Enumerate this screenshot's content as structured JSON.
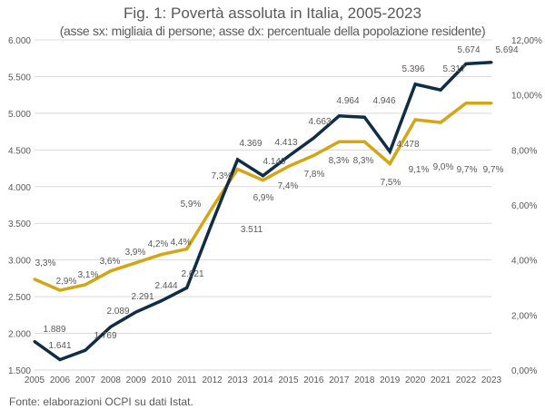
{
  "chart_data": {
    "type": "line",
    "title": "Fig. 1: Povertà assoluta in Italia, 2005-2023",
    "subtitle": "(asse sx: migliaia di persone; asse dx: percentuale della popolazione residente)",
    "source": "Fonte: elaborazioni OCPI su dati Istat.",
    "x": [
      "2005",
      "2006",
      "2007",
      "2008",
      "2009",
      "2010",
      "2011",
      "2012",
      "2013",
      "2014",
      "2015",
      "2016",
      "2017",
      "2018",
      "2019",
      "2020",
      "2021",
      "2022",
      "2023"
    ],
    "left_axis": {
      "ylim": [
        1500,
        6000
      ],
      "ticks": [
        "1.500",
        "2.000",
        "2.500",
        "3.000",
        "3.500",
        "4.000",
        "4.500",
        "5.000",
        "5.500",
        "6.000"
      ]
    },
    "right_axis": {
      "ylim": [
        0,
        12
      ],
      "ticks": [
        "0,00%",
        "2,00%",
        "4,00%",
        "6,00%",
        "8,00%",
        "10,00%",
        "12,00%"
      ]
    },
    "grid": true,
    "series": [
      {
        "axis": "left",
        "color": "#0f2d45",
        "values": [
          1889,
          1641,
          1769,
          2089,
          2291,
          2444,
          2621,
          3511,
          4369,
          4149,
          4413,
          4663,
          4964,
          4946,
          4478,
          5396,
          5317,
          5674,
          5694
        ],
        "labels": [
          "1.889",
          "1.641",
          "1.769",
          "2.089",
          "2.291",
          "2.444",
          "2.621",
          "3.511",
          "4.369",
          "4.149",
          "4.413",
          "4.663",
          "4.964",
          "4.946",
          "4.478",
          "5.396",
          "5.317",
          "5.674",
          "5.694"
        ]
      },
      {
        "axis": "right",
        "color": "#d4a514",
        "values": [
          3.3,
          2.9,
          3.1,
          3.6,
          3.9,
          4.2,
          4.4,
          5.9,
          7.3,
          6.9,
          7.4,
          7.8,
          8.3,
          8.3,
          7.5,
          9.1,
          9.0,
          9.7,
          9.7
        ],
        "labels": [
          "3,3%",
          "2,9%",
          "3,1%",
          "3,6%",
          "3,9%",
          "4,2%",
          "4,4%",
          "5,9%",
          "7,3%",
          "6,9%",
          "7,4%",
          "7,8%",
          "8,3%",
          "8,3%",
          "7,5%",
          "9,1%",
          "9,0%",
          "9,7%",
          "9,7%"
        ]
      }
    ]
  }
}
